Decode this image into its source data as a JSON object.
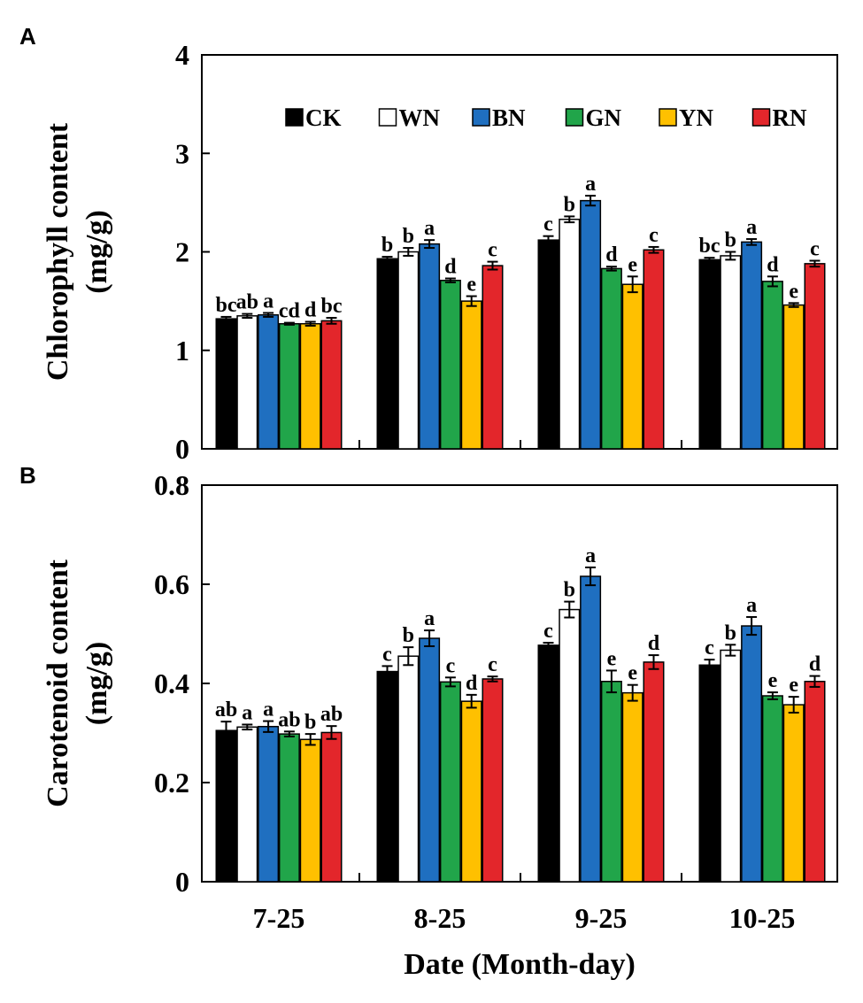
{
  "chart_data": [
    {
      "type": "bar",
      "panel": "A",
      "title": "",
      "xlabel": "",
      "ylabel_line1": "Chlorophyll  content",
      "ylabel_line2": "(mg/g)",
      "ylim": [
        0,
        4
      ],
      "yticks": [
        0,
        1,
        2,
        3,
        4
      ],
      "ytick_labels": [
        "0",
        "1",
        "2",
        "3",
        "4"
      ],
      "categories": [
        "7-25",
        "8-25",
        "9-25",
        "10-25"
      ],
      "legend": "top-right",
      "series": [
        {
          "name": "CK",
          "color": "#000000",
          "values": [
            1.32,
            1.93,
            2.12,
            1.92
          ],
          "errors": [
            0.02,
            0.02,
            0.04,
            0.02
          ],
          "sig": [
            "bc",
            "b",
            "c",
            "bc"
          ]
        },
        {
          "name": "WN",
          "color": "#ffffff",
          "values": [
            1.35,
            2.0,
            2.33,
            1.96
          ],
          "errors": [
            0.02,
            0.04,
            0.03,
            0.04
          ],
          "sig": [
            "ab",
            "b",
            "b",
            "b"
          ]
        },
        {
          "name": "BN",
          "color": "#1f6fc0",
          "values": [
            1.36,
            2.08,
            2.52,
            2.1
          ],
          "errors": [
            0.02,
            0.04,
            0.05,
            0.03
          ],
          "sig": [
            "a",
            "a",
            "a",
            "a"
          ]
        },
        {
          "name": "GN",
          "color": "#21a54a",
          "values": [
            1.27,
            1.71,
            1.83,
            1.7
          ],
          "errors": [
            0.01,
            0.02,
            0.02,
            0.05
          ],
          "sig": [
            "cd",
            "d",
            "d",
            "d"
          ]
        },
        {
          "name": "YN",
          "color": "#ffc000",
          "values": [
            1.27,
            1.5,
            1.67,
            1.46
          ],
          "errors": [
            0.02,
            0.05,
            0.08,
            0.02
          ],
          "sig": [
            "d",
            "e",
            "e",
            "e"
          ]
        },
        {
          "name": "RN",
          "color": "#e3262b",
          "values": [
            1.3,
            1.86,
            2.02,
            1.88
          ],
          "errors": [
            0.03,
            0.04,
            0.03,
            0.03
          ],
          "sig": [
            "bc",
            "c",
            "c",
            "c"
          ]
        }
      ]
    },
    {
      "type": "bar",
      "panel": "B",
      "title": "",
      "xlabel": "Date (Month-day)",
      "ylabel_line1": "Carotenoid content",
      "ylabel_line2": "(mg/g)",
      "ylim": [
        0,
        0.8
      ],
      "yticks": [
        0,
        0.2,
        0.4,
        0.6,
        0.8
      ],
      "ytick_labels": [
        "0",
        "0.2",
        "0.4",
        "0.6",
        "0.8"
      ],
      "categories": [
        "7-25",
        "8-25",
        "9-25",
        "10-25"
      ],
      "series": [
        {
          "name": "CK",
          "color": "#000000",
          "values": [
            0.305,
            0.424,
            0.477,
            0.437
          ],
          "errors": [
            0.018,
            0.011,
            0.005,
            0.011
          ],
          "sig": [
            "ab",
            "c",
            "c",
            "c"
          ]
        },
        {
          "name": "WN",
          "color": "#ffffff",
          "values": [
            0.312,
            0.455,
            0.549,
            0.467
          ],
          "errors": [
            0.005,
            0.018,
            0.016,
            0.011
          ],
          "sig": [
            "a",
            "b",
            "b",
            "b"
          ]
        },
        {
          "name": "BN",
          "color": "#1f6fc0",
          "values": [
            0.313,
            0.491,
            0.616,
            0.516
          ],
          "errors": [
            0.011,
            0.016,
            0.018,
            0.018
          ],
          "sig": [
            "a",
            "a",
            "a",
            "a"
          ]
        },
        {
          "name": "GN",
          "color": "#21a54a",
          "values": [
            0.298,
            0.403,
            0.404,
            0.375
          ],
          "errors": [
            0.005,
            0.009,
            0.022,
            0.007
          ],
          "sig": [
            "ab",
            "c",
            "e",
            "e"
          ]
        },
        {
          "name": "YN",
          "color": "#ffc000",
          "values": [
            0.287,
            0.364,
            0.381,
            0.357
          ],
          "errors": [
            0.011,
            0.013,
            0.016,
            0.016
          ],
          "sig": [
            "b",
            "d",
            "e",
            "e"
          ]
        },
        {
          "name": "RN",
          "color": "#e3262b",
          "values": [
            0.301,
            0.409,
            0.443,
            0.404
          ],
          "errors": [
            0.013,
            0.005,
            0.014,
            0.011
          ],
          "sig": [
            "ab",
            "c",
            "d",
            "d"
          ]
        }
      ]
    }
  ]
}
